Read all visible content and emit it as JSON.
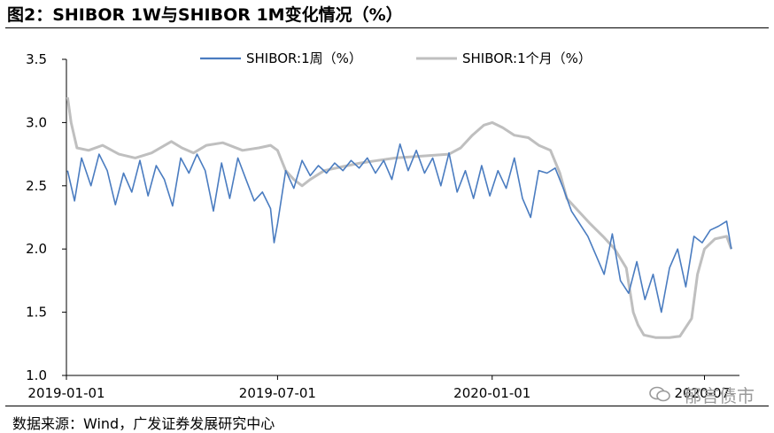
{
  "title": "图2：SHIBOR 1W与SHIBOR 1M变化情况（%）",
  "source": "数据来源：Wind，广发证券发展研究中心",
  "watermark": "郁言债市",
  "colors": {
    "series_1w": "#4a7cc0",
    "series_1m": "#bfbfbf",
    "axis": "#000000"
  },
  "chart_data": {
    "type": "line",
    "xlabel": "",
    "ylabel": "",
    "ylim": [
      1.0,
      3.5
    ],
    "yticks": [
      "3.5",
      "3.0",
      "2.5",
      "2.0",
      "1.5",
      "1.0"
    ],
    "xticks": [
      "2019-01-01",
      "2019-07-01",
      "2020-01-01",
      "2020-07-"
    ],
    "xlim": [
      "2019-01-01",
      "2020-07-31"
    ],
    "grid": false,
    "legend_position": "top",
    "series": [
      {
        "name": "SHIBOR:1周（%）",
        "points": [
          [
            "2019-01-02",
            2.62
          ],
          [
            "2019-01-08",
            2.38
          ],
          [
            "2019-01-14",
            2.72
          ],
          [
            "2019-01-22",
            2.5
          ],
          [
            "2019-01-29",
            2.75
          ],
          [
            "2019-02-05",
            2.62
          ],
          [
            "2019-02-12",
            2.35
          ],
          [
            "2019-02-19",
            2.6
          ],
          [
            "2019-02-26",
            2.45
          ],
          [
            "2019-03-05",
            2.7
          ],
          [
            "2019-03-12",
            2.42
          ],
          [
            "2019-03-19",
            2.66
          ],
          [
            "2019-03-26",
            2.55
          ],
          [
            "2019-04-02",
            2.34
          ],
          [
            "2019-04-09",
            2.72
          ],
          [
            "2019-04-16",
            2.6
          ],
          [
            "2019-04-23",
            2.75
          ],
          [
            "2019-04-30",
            2.62
          ],
          [
            "2019-05-07",
            2.3
          ],
          [
            "2019-05-14",
            2.68
          ],
          [
            "2019-05-21",
            2.4
          ],
          [
            "2019-05-28",
            2.72
          ],
          [
            "2019-06-04",
            2.55
          ],
          [
            "2019-06-11",
            2.38
          ],
          [
            "2019-06-18",
            2.45
          ],
          [
            "2019-06-25",
            2.32
          ],
          [
            "2019-06-28",
            2.05
          ],
          [
            "2019-07-01",
            2.2
          ],
          [
            "2019-07-08",
            2.62
          ],
          [
            "2019-07-15",
            2.48
          ],
          [
            "2019-07-22",
            2.7
          ],
          [
            "2019-07-29",
            2.58
          ],
          [
            "2019-08-05",
            2.66
          ],
          [
            "2019-08-12",
            2.6
          ],
          [
            "2019-08-19",
            2.68
          ],
          [
            "2019-08-26",
            2.62
          ],
          [
            "2019-09-02",
            2.7
          ],
          [
            "2019-09-09",
            2.64
          ],
          [
            "2019-09-16",
            2.72
          ],
          [
            "2019-09-23",
            2.6
          ],
          [
            "2019-09-30",
            2.7
          ],
          [
            "2019-10-07",
            2.55
          ],
          [
            "2019-10-14",
            2.83
          ],
          [
            "2019-10-21",
            2.62
          ],
          [
            "2019-10-28",
            2.78
          ],
          [
            "2019-11-04",
            2.6
          ],
          [
            "2019-11-11",
            2.72
          ],
          [
            "2019-11-18",
            2.5
          ],
          [
            "2019-11-25",
            2.76
          ],
          [
            "2019-12-02",
            2.45
          ],
          [
            "2019-12-09",
            2.62
          ],
          [
            "2019-12-16",
            2.4
          ],
          [
            "2019-12-23",
            2.66
          ],
          [
            "2019-12-30",
            2.42
          ],
          [
            "2020-01-06",
            2.62
          ],
          [
            "2020-01-13",
            2.48
          ],
          [
            "2020-01-20",
            2.72
          ],
          [
            "2020-01-27",
            2.4
          ],
          [
            "2020-02-03",
            2.25
          ],
          [
            "2020-02-10",
            2.62
          ],
          [
            "2020-02-17",
            2.6
          ],
          [
            "2020-02-24",
            2.64
          ],
          [
            "2020-03-02",
            2.48
          ],
          [
            "2020-03-09",
            2.3
          ],
          [
            "2020-03-16",
            2.2
          ],
          [
            "2020-03-23",
            2.1
          ],
          [
            "2020-03-30",
            1.95
          ],
          [
            "2020-04-06",
            1.8
          ],
          [
            "2020-04-13",
            2.12
          ],
          [
            "2020-04-20",
            1.75
          ],
          [
            "2020-04-27",
            1.65
          ],
          [
            "2020-05-04",
            1.9
          ],
          [
            "2020-05-11",
            1.6
          ],
          [
            "2020-05-18",
            1.8
          ],
          [
            "2020-05-25",
            1.5
          ],
          [
            "2020-06-01",
            1.85
          ],
          [
            "2020-06-08",
            2.0
          ],
          [
            "2020-06-15",
            1.7
          ],
          [
            "2020-06-22",
            2.1
          ],
          [
            "2020-06-29",
            2.05
          ],
          [
            "2020-07-06",
            2.15
          ],
          [
            "2020-07-13",
            2.18
          ],
          [
            "2020-07-20",
            2.22
          ],
          [
            "2020-07-24",
            2.0
          ]
        ]
      },
      {
        "name": "SHIBOR:1个月（%）",
        "points": [
          [
            "2019-01-02",
            3.2
          ],
          [
            "2019-01-05",
            3.0
          ],
          [
            "2019-01-10",
            2.8
          ],
          [
            "2019-01-20",
            2.78
          ],
          [
            "2019-02-01",
            2.82
          ],
          [
            "2019-02-15",
            2.75
          ],
          [
            "2019-03-01",
            2.72
          ],
          [
            "2019-03-15",
            2.76
          ],
          [
            "2019-04-01",
            2.85
          ],
          [
            "2019-04-10",
            2.8
          ],
          [
            "2019-04-20",
            2.76
          ],
          [
            "2019-05-01",
            2.82
          ],
          [
            "2019-05-15",
            2.84
          ],
          [
            "2019-06-01",
            2.78
          ],
          [
            "2019-06-15",
            2.8
          ],
          [
            "2019-06-25",
            2.82
          ],
          [
            "2019-07-01",
            2.78
          ],
          [
            "2019-07-08",
            2.62
          ],
          [
            "2019-07-15",
            2.55
          ],
          [
            "2019-07-22",
            2.5
          ],
          [
            "2019-07-29",
            2.55
          ],
          [
            "2019-08-10",
            2.62
          ],
          [
            "2019-08-25",
            2.65
          ],
          [
            "2019-09-10",
            2.68
          ],
          [
            "2019-09-25",
            2.7
          ],
          [
            "2019-10-10",
            2.72
          ],
          [
            "2019-10-25",
            2.73
          ],
          [
            "2019-11-10",
            2.74
          ],
          [
            "2019-11-25",
            2.75
          ],
          [
            "2019-12-05",
            2.8
          ],
          [
            "2019-12-15",
            2.9
          ],
          [
            "2019-12-25",
            2.98
          ],
          [
            "2020-01-01",
            3.0
          ],
          [
            "2020-01-10",
            2.96
          ],
          [
            "2020-01-20",
            2.9
          ],
          [
            "2020-02-01",
            2.88
          ],
          [
            "2020-02-10",
            2.82
          ],
          [
            "2020-02-20",
            2.78
          ],
          [
            "2020-02-28",
            2.6
          ],
          [
            "2020-03-05",
            2.4
          ],
          [
            "2020-03-15",
            2.3
          ],
          [
            "2020-03-25",
            2.2
          ],
          [
            "2020-04-05",
            2.1
          ],
          [
            "2020-04-15",
            2.0
          ],
          [
            "2020-04-25",
            1.85
          ],
          [
            "2020-05-01",
            1.5
          ],
          [
            "2020-05-05",
            1.4
          ],
          [
            "2020-05-10",
            1.32
          ],
          [
            "2020-05-20",
            1.3
          ],
          [
            "2020-06-01",
            1.3
          ],
          [
            "2020-06-10",
            1.31
          ],
          [
            "2020-06-20",
            1.45
          ],
          [
            "2020-06-25",
            1.8
          ],
          [
            "2020-07-01",
            2.0
          ],
          [
            "2020-07-10",
            2.08
          ],
          [
            "2020-07-20",
            2.1
          ],
          [
            "2020-07-24",
            2.0
          ]
        ]
      }
    ]
  }
}
